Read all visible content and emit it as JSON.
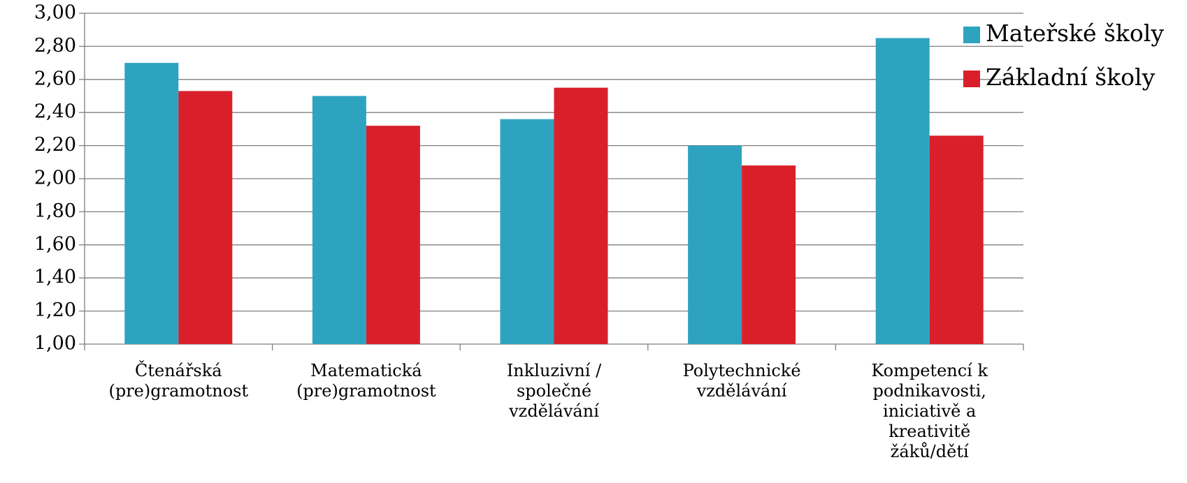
{
  "chart_data": {
    "type": "bar",
    "categories": [
      "Čtenářská (pre)gramotnost",
      "Matematická (pre)gramotnost",
      "Inkluzivní / společné vzdělávání",
      "Polytechnické vzdělávání",
      "Kompetencí k podnikavosti, iniciativě a kreativitě žáků/dětí"
    ],
    "series": [
      {
        "name": "Mateřské školy",
        "color": "#2ea3c0",
        "values": [
          2.7,
          2.5,
          2.36,
          2.2,
          2.85
        ]
      },
      {
        "name": "Základní školy",
        "color": "#d9202a",
        "values": [
          2.53,
          2.32,
          2.55,
          2.08,
          2.26
        ]
      }
    ],
    "ylim": [
      1,
      3
    ],
    "yticks": [
      {
        "value": 1,
        "label": "1,00"
      },
      {
        "value": 1.2,
        "label": "1,20"
      },
      {
        "value": 1.4,
        "label": "1,40"
      },
      {
        "value": 1.6,
        "label": "1,60"
      },
      {
        "value": 1.8,
        "label": "1,80"
      },
      {
        "value": 2,
        "label": "2,00"
      },
      {
        "value": 2.2,
        "label": "2,20"
      },
      {
        "value": 2.4,
        "label": "2,40"
      },
      {
        "value": 2.6,
        "label": "2,60"
      },
      {
        "value": 2.8,
        "label": "2,80"
      },
      {
        "value": 3,
        "label": "3,00"
      }
    ],
    "grid": true,
    "legend": "top-right"
  }
}
